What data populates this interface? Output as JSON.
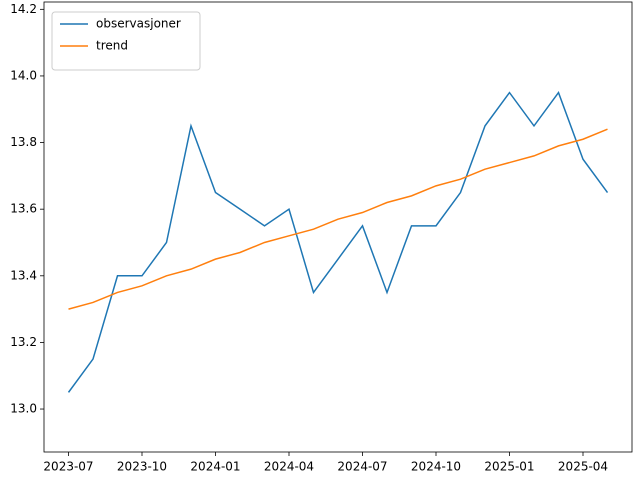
{
  "chart_data": {
    "type": "line",
    "x": [
      "2023-07",
      "2023-08",
      "2023-09",
      "2023-10",
      "2023-11",
      "2023-12",
      "2024-01",
      "2024-02",
      "2024-03",
      "2024-04",
      "2024-05",
      "2024-06",
      "2024-07",
      "2024-08",
      "2024-09",
      "2024-10",
      "2024-11",
      "2024-12",
      "2025-01",
      "2025-02",
      "2025-03",
      "2025-04",
      "2025-05"
    ],
    "series": [
      {
        "name": "observasjoner",
        "color": "#1f77b4",
        "values": [
          13.05,
          13.15,
          13.4,
          13.4,
          13.5,
          13.85,
          13.65,
          13.6,
          13.55,
          13.6,
          13.35,
          13.45,
          13.55,
          13.35,
          13.55,
          13.55,
          13.65,
          13.85,
          13.95,
          13.85,
          13.95,
          13.75,
          13.65
        ]
      },
      {
        "name": "trend",
        "color": "#ff7f0e",
        "values": [
          13.3,
          13.32,
          13.35,
          13.37,
          13.4,
          13.42,
          13.45,
          13.47,
          13.5,
          13.52,
          13.54,
          13.57,
          13.59,
          13.62,
          13.64,
          13.67,
          13.69,
          13.72,
          13.74,
          13.76,
          13.79,
          13.81,
          13.84
        ]
      }
    ],
    "xlim": [
      "2023-06",
      "2025-06"
    ],
    "xticks": [
      "2023-07",
      "2023-10",
      "2024-01",
      "2024-04",
      "2024-07",
      "2024-10",
      "2025-01",
      "2025-04"
    ],
    "ylim": [
      12.871,
      14.222
    ],
    "yticks": [
      {
        "value": 13,
        "label": "13.0"
      },
      {
        "value": 13.2,
        "label": "13.2"
      },
      {
        "value": 13.4,
        "label": "13.4"
      },
      {
        "value": 13.6,
        "label": "13.6"
      },
      {
        "value": 13.8,
        "label": "13.8"
      },
      {
        "value": 14,
        "label": "14.0"
      },
      {
        "value": 14.2,
        "label": "14.2"
      }
    ],
    "legend": "upper left"
  }
}
